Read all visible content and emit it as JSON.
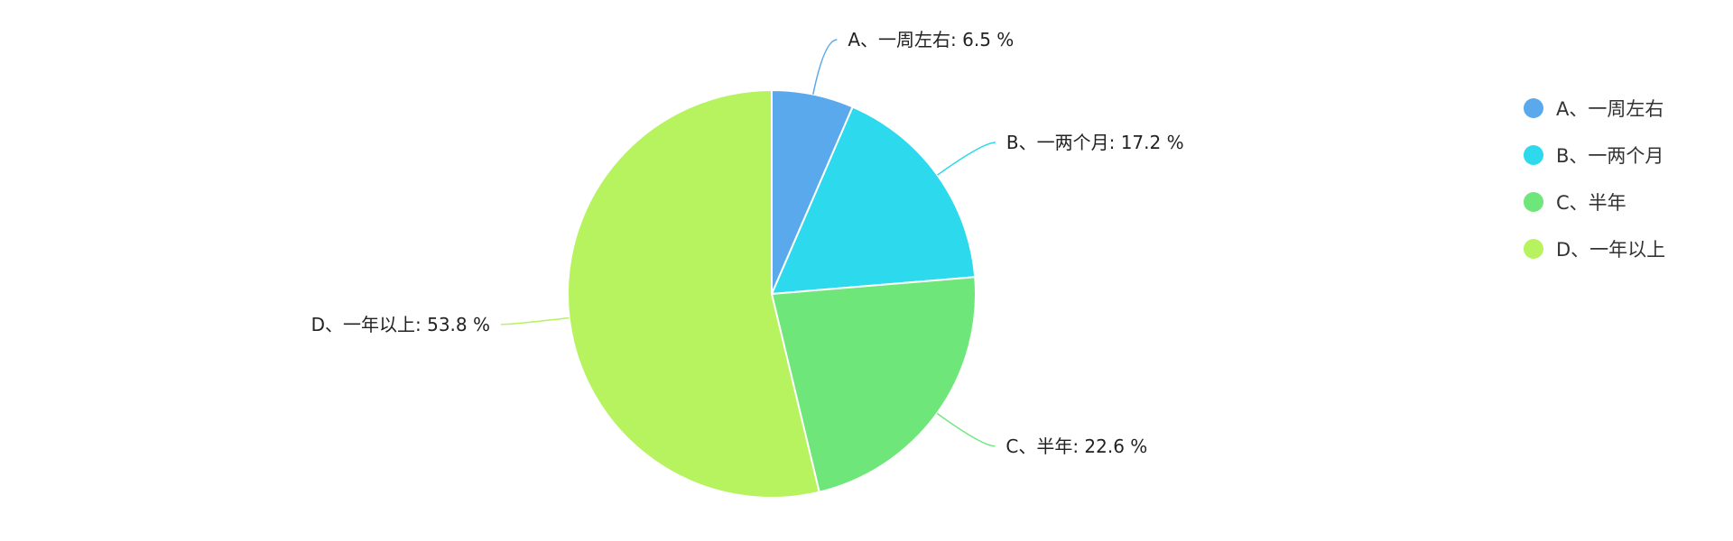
{
  "chart_data": {
    "type": "pie",
    "categories": [
      "A、一周左右",
      "B、一两个月",
      "C、半年",
      "D、一年以上"
    ],
    "values": [
      6.5,
      17.2,
      22.6,
      53.8
    ],
    "unit": "%",
    "labels": [
      "A、一周左右: 6.5 %",
      "B、一两个月: 17.2 %",
      "C、半年: 22.6 %",
      "D、一年以上: 53.8 %"
    ],
    "colors": [
      "#5aa9ec",
      "#2cd9ed",
      "#6ee67a",
      "#b6f35e"
    ],
    "start_angle": "top, clockwise",
    "legend_position": "top-right"
  }
}
